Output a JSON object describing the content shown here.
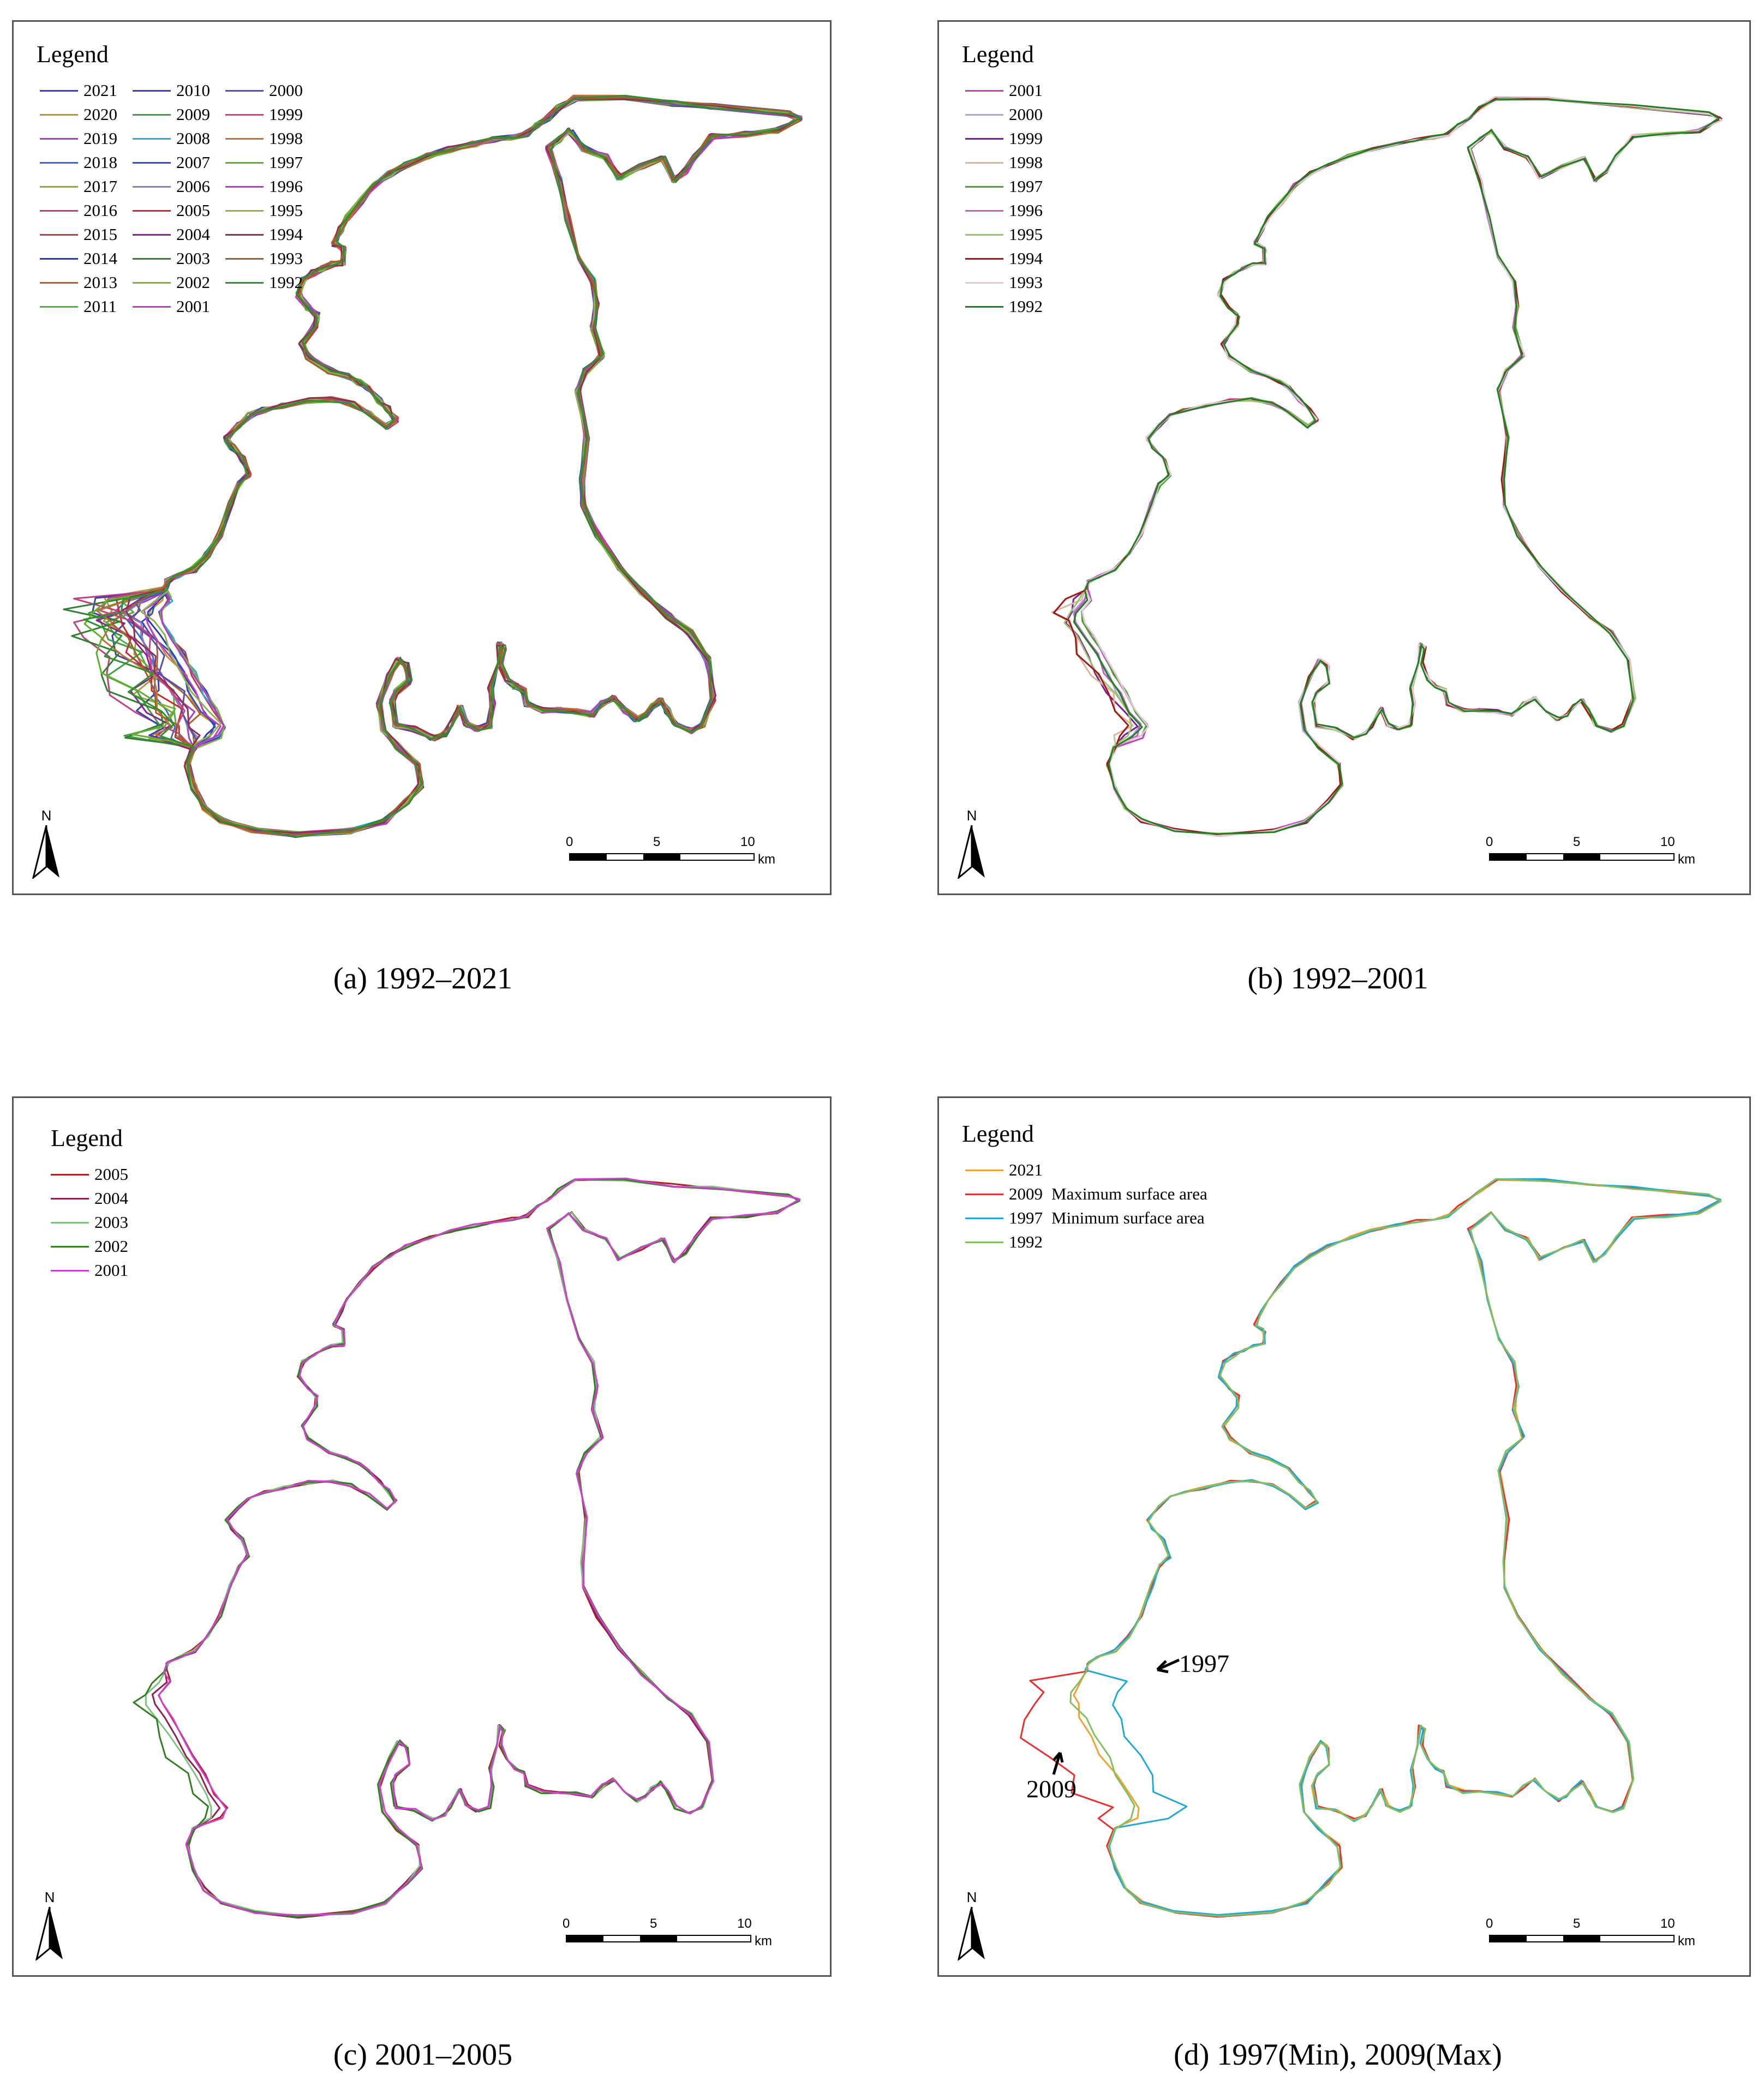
{
  "panels": [
    {
      "id": "a",
      "caption": "(a)  1992–2021",
      "legend_title": "Legend",
      "legend_rows": 10,
      "legend": [
        {
          "year": "2021",
          "color": "#3a3ad8"
        },
        {
          "year": "2020",
          "color": "#c8902a"
        },
        {
          "year": "2019",
          "color": "#a040c0"
        },
        {
          "year": "2018",
          "color": "#3d6cc8"
        },
        {
          "year": "2017",
          "color": "#a0a040"
        },
        {
          "year": "2016",
          "color": "#c04080"
        },
        {
          "year": "2015",
          "color": "#b04050"
        },
        {
          "year": "2014",
          "color": "#2a3ab0"
        },
        {
          "year": "2013",
          "color": "#b06030"
        },
        {
          "year": "2011",
          "color": "#50b040"
        },
        {
          "year": "2010",
          "color": "#4040b0"
        },
        {
          "year": "2009",
          "color": "#40a040"
        },
        {
          "year": "2008",
          "color": "#30a8d0"
        },
        {
          "year": "2007",
          "color": "#3050c0"
        },
        {
          "year": "2006",
          "color": "#8080c0"
        },
        {
          "year": "2005",
          "color": "#c03030"
        },
        {
          "year": "2004",
          "color": "#902090"
        },
        {
          "year": "2003",
          "color": "#308030"
        },
        {
          "year": "2002",
          "color": "#80b040"
        },
        {
          "year": "2001",
          "color": "#c040c0"
        },
        {
          "year": "2000",
          "color": "#5050b0"
        },
        {
          "year": "1999",
          "color": "#d04080"
        },
        {
          "year": "1998",
          "color": "#c07030"
        },
        {
          "year": "1997",
          "color": "#60b030"
        },
        {
          "year": "1996",
          "color": "#b040c0"
        },
        {
          "year": "1995",
          "color": "#90b050"
        },
        {
          "year": "1994",
          "color": "#903050"
        },
        {
          "year": "1993",
          "color": "#a06030"
        },
        {
          "year": "1992",
          "color": "#309030"
        }
      ],
      "scale": {
        "ticks": [
          "0",
          "5",
          "10"
        ],
        "unit": "km"
      },
      "north": "N"
    },
    {
      "id": "b",
      "caption": "(b)  1992–2001",
      "legend_title": "Legend",
      "legend_rows": 10,
      "legend": [
        {
          "year": "2001",
          "color": "#c040c0"
        },
        {
          "year": "2000",
          "color": "#b0a0e0"
        },
        {
          "year": "1999",
          "color": "#7a1a9a"
        },
        {
          "year": "1998",
          "color": "#d8b898"
        },
        {
          "year": "1997",
          "color": "#50a030"
        },
        {
          "year": "1996",
          "color": "#c060c0"
        },
        {
          "year": "1995",
          "color": "#a0c070"
        },
        {
          "year": "1994",
          "color": "#a01818"
        },
        {
          "year": "1993",
          "color": "#e0c8d8"
        },
        {
          "year": "1992",
          "color": "#208020"
        }
      ],
      "scale": {
        "ticks": [
          "0",
          "5",
          "10"
        ],
        "unit": "km"
      },
      "north": "N"
    },
    {
      "id": "c",
      "caption": "(c)  2001–2005",
      "legend_title": "Legend",
      "legend_rows": 5,
      "legend": [
        {
          "year": "2005",
          "color": "#b02020"
        },
        {
          "year": "2004",
          "color": "#902050"
        },
        {
          "year": "2003",
          "color": "#80c080"
        },
        {
          "year": "2002",
          "color": "#308020"
        },
        {
          "year": "2001",
          "color": "#d040d0"
        }
      ],
      "scale": {
        "ticks": [
          "0",
          "5",
          "10"
        ],
        "unit": "km"
      },
      "north": "N"
    },
    {
      "id": "d",
      "caption": "(d)  1997(Min), 2009(Max)",
      "legend_title": "Legend",
      "legend_rows": 4,
      "legend": [
        {
          "year": "2021",
          "color": "#f0a030",
          "note": ""
        },
        {
          "year": "2009",
          "color": "#e83030",
          "note": "Maximum surface area"
        },
        {
          "year": "1997",
          "color": "#20a8d8",
          "note": "Minimum surface area"
        },
        {
          "year": "1992",
          "color": "#80c060",
          "note": ""
        }
      ],
      "annotations": [
        "1997",
        "2009"
      ],
      "scale": {
        "ticks": [
          "0",
          "5",
          "10"
        ],
        "unit": "km"
      },
      "north": "N"
    }
  ]
}
